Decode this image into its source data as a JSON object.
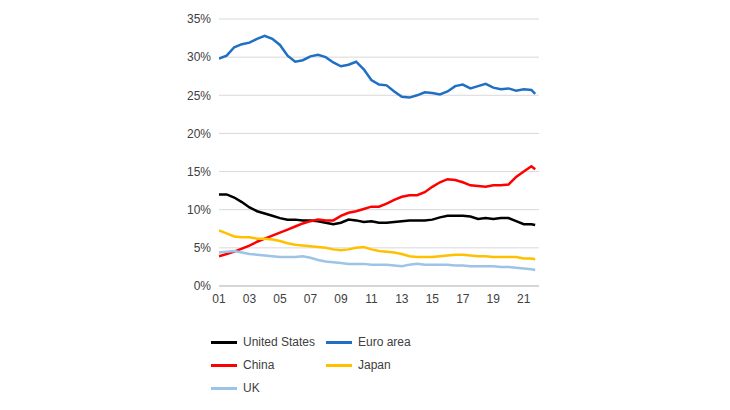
{
  "chart_data": {
    "type": "line",
    "x": [
      2001,
      2001.5,
      2002,
      2002.5,
      2003,
      2003.5,
      2004,
      2004.5,
      2005,
      2005.5,
      2006,
      2006.5,
      2007,
      2007.5,
      2008,
      2008.5,
      2009,
      2009.5,
      2010,
      2010.5,
      2011,
      2011.5,
      2012,
      2012.5,
      2013,
      2013.5,
      2014,
      2014.5,
      2015,
      2015.5,
      2016,
      2016.5,
      2017,
      2017.5,
      2018,
      2018.5,
      2019,
      2019.5,
      2020,
      2020.5,
      2021,
      2021.5,
      2021.75
    ],
    "series": [
      {
        "name": "United States",
        "color": "#000000",
        "values": [
          12.0,
          12.0,
          11.6,
          11.0,
          10.3,
          9.8,
          9.5,
          9.2,
          8.9,
          8.7,
          8.7,
          8.6,
          8.6,
          8.5,
          8.3,
          8.1,
          8.3,
          8.7,
          8.6,
          8.4,
          8.5,
          8.3,
          8.3,
          8.4,
          8.5,
          8.6,
          8.6,
          8.6,
          8.7,
          9.0,
          9.2,
          9.2,
          9.2,
          9.1,
          8.8,
          8.9,
          8.8,
          8.9,
          8.9,
          8.5,
          8.1,
          8.1,
          8.0
        ]
      },
      {
        "name": "Euro area",
        "color": "#1F6FC5",
        "values": [
          29.8,
          30.2,
          31.3,
          31.7,
          31.9,
          32.4,
          32.8,
          32.4,
          31.6,
          30.2,
          29.4,
          29.6,
          30.1,
          30.3,
          30.0,
          29.3,
          28.8,
          29.0,
          29.4,
          28.4,
          27.0,
          26.4,
          26.3,
          25.5,
          24.8,
          24.7,
          25.0,
          25.4,
          25.3,
          25.1,
          25.5,
          26.2,
          26.4,
          25.9,
          26.2,
          26.5,
          26.0,
          25.8,
          25.9,
          25.6,
          25.8,
          25.7,
          25.2
        ]
      },
      {
        "name": "China",
        "color": "#FF0000",
        "values": [
          3.9,
          4.2,
          4.5,
          4.9,
          5.3,
          5.8,
          6.2,
          6.6,
          7.0,
          7.4,
          7.8,
          8.2,
          8.5,
          8.7,
          8.6,
          8.6,
          9.2,
          9.6,
          9.8,
          10.1,
          10.4,
          10.4,
          10.8,
          11.3,
          11.7,
          11.9,
          11.9,
          12.3,
          13.0,
          13.6,
          14.0,
          13.9,
          13.6,
          13.2,
          13.1,
          13.0,
          13.2,
          13.2,
          13.3,
          14.3,
          15.0,
          15.7,
          15.3
        ]
      },
      {
        "name": "Japan",
        "color": "#FFC000",
        "values": [
          7.3,
          6.9,
          6.5,
          6.4,
          6.4,
          6.2,
          6.2,
          6.1,
          5.9,
          5.6,
          5.4,
          5.3,
          5.2,
          5.1,
          5.0,
          4.8,
          4.7,
          4.8,
          5.0,
          5.1,
          4.8,
          4.6,
          4.5,
          4.4,
          4.2,
          3.9,
          3.8,
          3.8,
          3.8,
          3.9,
          4.0,
          4.1,
          4.1,
          4.0,
          3.9,
          3.9,
          3.8,
          3.8,
          3.8,
          3.8,
          3.6,
          3.6,
          3.5
        ]
      },
      {
        "name": "UK",
        "color": "#9DC3E6",
        "values": [
          4.4,
          4.5,
          4.6,
          4.4,
          4.2,
          4.1,
          4.0,
          3.9,
          3.8,
          3.8,
          3.8,
          3.9,
          3.7,
          3.4,
          3.2,
          3.1,
          3.0,
          2.9,
          2.9,
          2.9,
          2.8,
          2.8,
          2.8,
          2.7,
          2.6,
          2.8,
          2.9,
          2.8,
          2.8,
          2.8,
          2.8,
          2.7,
          2.7,
          2.6,
          2.6,
          2.6,
          2.6,
          2.5,
          2.5,
          2.4,
          2.3,
          2.2,
          2.1
        ]
      }
    ],
    "xlim": [
      2001,
      2022
    ],
    "xticks": [
      {
        "value": 2001,
        "label": "01"
      },
      {
        "value": 2003,
        "label": "03"
      },
      {
        "value": 2005,
        "label": "05"
      },
      {
        "value": 2007,
        "label": "07"
      },
      {
        "value": 2009,
        "label": "09"
      },
      {
        "value": 2011,
        "label": "11"
      },
      {
        "value": 2013,
        "label": "13"
      },
      {
        "value": 2015,
        "label": "15"
      },
      {
        "value": 2017,
        "label": "17"
      },
      {
        "value": 2019,
        "label": "19"
      },
      {
        "value": 2021,
        "label": "21"
      }
    ],
    "ylim": [
      0,
      35
    ],
    "yticks": [
      {
        "value": 0,
        "label": "0%"
      },
      {
        "value": 5,
        "label": "5%"
      },
      {
        "value": 10,
        "label": "10%"
      },
      {
        "value": 15,
        "label": "15%"
      },
      {
        "value": 20,
        "label": "20%"
      },
      {
        "value": 25,
        "label": "25%"
      },
      {
        "value": 30,
        "label": "30%"
      },
      {
        "value": 35,
        "label": "35%"
      }
    ],
    "grid": true,
    "legend": "bottom"
  }
}
